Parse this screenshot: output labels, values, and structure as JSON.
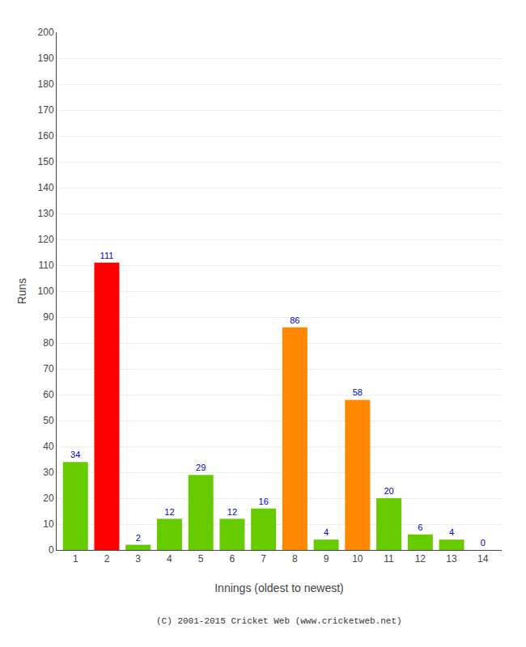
{
  "chart_data": {
    "type": "bar",
    "xlabel": "Innings (oldest to newest)",
    "ylabel": "Runs",
    "categories": [
      "1",
      "2",
      "3",
      "4",
      "5",
      "6",
      "7",
      "8",
      "9",
      "10",
      "11",
      "12",
      "13",
      "14"
    ],
    "values": [
      34,
      111,
      2,
      12,
      29,
      12,
      16,
      86,
      4,
      58,
      20,
      6,
      4,
      0
    ],
    "colors": [
      "#66cc00",
      "#ff0000",
      "#66cc00",
      "#66cc00",
      "#66cc00",
      "#66cc00",
      "#66cc00",
      "#ff8800",
      "#66cc00",
      "#ff8800",
      "#66cc00",
      "#66cc00",
      "#66cc00",
      "#66cc00"
    ],
    "ylim": [
      0,
      200
    ],
    "yticks": [
      0,
      10,
      20,
      30,
      40,
      50,
      60,
      70,
      80,
      90,
      100,
      110,
      120,
      130,
      140,
      150,
      160,
      170,
      180,
      190,
      200
    ],
    "grid": true,
    "data_labels": true,
    "annotations": [
      "(C) 2001-2015 Cricket Web (www.cricketweb.net)"
    ]
  }
}
